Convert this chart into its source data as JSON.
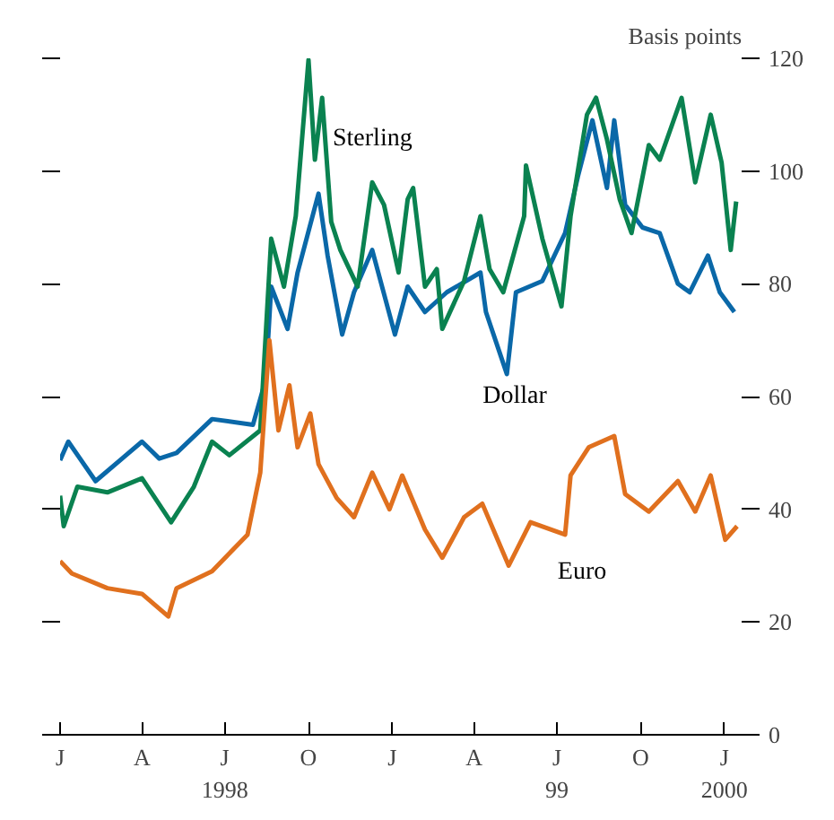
{
  "chart_data": {
    "type": "line",
    "ylabel": "Basis points",
    "xlim": [
      "1998-01-01",
      "2000-01-20"
    ],
    "ylim": [
      0,
      120
    ],
    "yticks": [
      0,
      20,
      40,
      60,
      80,
      100,
      120
    ],
    "xticks": [
      {
        "value": "1998-01-01",
        "label": "J"
      },
      {
        "value": "1998-04-01",
        "label": "A"
      },
      {
        "value": "1998-07-01",
        "label": "J\n1998"
      },
      {
        "value": "1998-10-01",
        "label": "O"
      },
      {
        "value": "1999-01-01",
        "label": "J"
      },
      {
        "value": "1999-04-01",
        "label": "A"
      },
      {
        "value": "1999-07-01",
        "label": "J\n99"
      },
      {
        "value": "1999-10-01",
        "label": "O"
      },
      {
        "value": "2000-01-01",
        "label": "J\n2000"
      }
    ],
    "grid": false,
    "marker": "none",
    "line_style": "solid",
    "series": [
      {
        "name": "Dollar",
        "color": "#0a68a8",
        "x": [
          "1998-01-01",
          "1998-01-10",
          "1998-02-09",
          "1998-04-01",
          "1998-04-20",
          "1998-05-09",
          "1998-06-17",
          "1998-08-01",
          "1998-08-15",
          "1998-08-21",
          "1998-09-08",
          "1998-09-19",
          "1998-10-12",
          "1998-10-22",
          "1998-11-07",
          "1998-11-20",
          "1998-12-10",
          "1999-01-04",
          "1999-01-18",
          "1999-02-06",
          "1999-03-02",
          "1999-04-08",
          "1999-04-14",
          "1999-05-07",
          "1999-05-17",
          "1999-06-15",
          "1999-07-10",
          "1999-07-24",
          "1999-08-09",
          "1999-08-25",
          "1999-09-02",
          "1999-09-14",
          "1999-10-03",
          "1999-10-22",
          "1999-11-11",
          "1999-11-24",
          "1999-12-14",
          "1999-12-27",
          "2000-01-12"
        ],
        "values": [
          48.7,
          52,
          45,
          52,
          49,
          50,
          56,
          55,
          63,
          79.5,
          72,
          82,
          96,
          85,
          71,
          78.5,
          86,
          71,
          79.5,
          75,
          78.5,
          82,
          75,
          64,
          78.5,
          80.5,
          89,
          99,
          109,
          97,
          109,
          94,
          90,
          89,
          80,
          78.5,
          85,
          78.5,
          75
        ]
      },
      {
        "name": "Sterling",
        "color": "#0a8250",
        "x": [
          "1998-01-01",
          "1998-01-05",
          "1998-01-20",
          "1998-02-22",
          "1998-04-01",
          "1998-05-03",
          "1998-05-28",
          "1998-06-17",
          "1998-07-06",
          "1998-08-09",
          "1998-08-21",
          "1998-09-04",
          "1998-09-17",
          "1998-10-01",
          "1998-10-08",
          "1998-10-16",
          "1998-10-26",
          "1998-11-05",
          "1998-11-24",
          "1998-12-10",
          "1998-12-23",
          "1999-01-08",
          "1999-01-18",
          "1999-01-24",
          "1999-02-06",
          "1999-02-19",
          "1999-02-25",
          "1999-03-21",
          "1999-04-08",
          "1999-04-18",
          "1999-05-03",
          "1999-05-26",
          "1999-05-28",
          "1999-06-15",
          "1999-07-06",
          "1999-07-16",
          "1999-08-03",
          "1999-08-13",
          "1999-08-25",
          "1999-09-08",
          "1999-09-21",
          "1999-10-10",
          "1999-10-22",
          "1999-11-15",
          "1999-11-30",
          "1999-12-17",
          "1999-12-29",
          "2000-01-08",
          "2000-01-14"
        ],
        "values": [
          42.4,
          37,
          44,
          43,
          45.5,
          37.7,
          44,
          52,
          49.6,
          54,
          88,
          79.5,
          92,
          119.7,
          102,
          113,
          91,
          86,
          79.5,
          98,
          94,
          82,
          95,
          97,
          79.5,
          82.6,
          72,
          80.5,
          92,
          82.6,
          78.5,
          92,
          101,
          88,
          76,
          92,
          110,
          113,
          105.6,
          95,
          89,
          104.6,
          102,
          113,
          98,
          110,
          101.5,
          86,
          94.6
        ]
      },
      {
        "name": "Euro",
        "color": "#e0701e",
        "x": [
          "1998-01-01",
          "1998-01-14",
          "1998-02-22",
          "1998-04-01",
          "1998-04-30",
          "1998-05-09",
          "1998-06-17",
          "1998-07-26",
          "1998-08-09",
          "1998-08-19",
          "1998-08-29",
          "1998-09-10",
          "1998-09-19",
          "1998-10-03",
          "1998-10-12",
          "1998-11-01",
          "1998-11-20",
          "1998-12-10",
          "1998-12-29",
          "1999-01-12",
          "1999-02-06",
          "1999-02-25",
          "1999-03-21",
          "1999-04-10",
          "1999-05-09",
          "1999-06-02",
          "1999-07-10",
          "1999-07-16",
          "1999-08-05",
          "1999-09-02",
          "1999-09-14",
          "1999-10-10",
          "1999-11-11",
          "1999-11-30",
          "1999-12-17",
          "2000-01-02",
          "2000-01-15"
        ],
        "values": [
          30.8,
          28.6,
          26,
          25,
          21,
          26,
          29,
          35.5,
          46.5,
          70,
          54,
          62,
          51,
          57,
          48,
          42,
          38.6,
          46.5,
          40,
          46,
          36.4,
          31.4,
          38.6,
          41,
          30,
          37.7,
          35.5,
          46,
          51,
          53,
          42.7,
          39.6,
          45,
          39.6,
          46,
          34.6,
          37
        ]
      }
    ]
  }
}
